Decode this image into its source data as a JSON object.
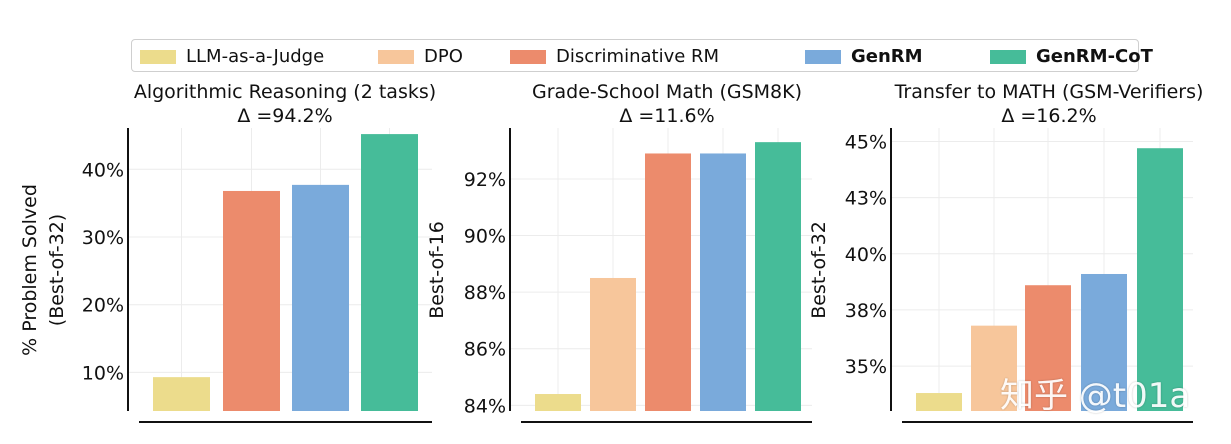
{
  "legend": [
    {
      "label": "LLM-as-a-Judge",
      "color": "#ecdc8c",
      "bold": false
    },
    {
      "label": "DPO",
      "color": "#f7c69b",
      "bold": false
    },
    {
      "label": "Discriminative RM",
      "color": "#ec8b6c",
      "bold": false
    },
    {
      "label": "GenRM",
      "color": "#7aaadb",
      "bold": true
    },
    {
      "label": "GenRM-CoT",
      "color": "#46bc99",
      "bold": true
    }
  ],
  "chart_data": [
    {
      "type": "bar",
      "title": "Algorithmic Reasoning (2 tasks)",
      "subtitle": "Δ =94.2%",
      "ylabel": [
        "% Problem Solved",
        "(Best-of-32)"
      ],
      "categories": [
        "LLM-as-a-Judge",
        "Discriminative RM",
        "GenRM",
        "GenRM-CoT"
      ],
      "colors": [
        "#ecdc8c",
        "#ec8b6c",
        "#7aaadb",
        "#46bc99"
      ],
      "values": [
        9.3,
        36.8,
        37.7,
        45.2
      ],
      "ylim": [
        4.3,
        46.1
      ],
      "yticks": [
        10,
        20,
        30,
        40
      ],
      "yticklabels": [
        "10%",
        "20%",
        "30%",
        "40%"
      ],
      "grid": true
    },
    {
      "type": "bar",
      "title": "Grade-School Math (GSM8K)",
      "subtitle": "Δ =11.6%",
      "ylabel": [
        "Best-of-16"
      ],
      "categories": [
        "LLM-as-a-Judge",
        "DPO",
        "Discriminative RM",
        "GenRM",
        "GenRM-CoT"
      ],
      "colors": [
        "#ecdc8c",
        "#f7c69b",
        "#ec8b6c",
        "#7aaadb",
        "#46bc99"
      ],
      "values": [
        84.4,
        88.5,
        92.9,
        92.9,
        93.3
      ],
      "ylim": [
        83.8,
        93.8
      ],
      "yticks": [
        84,
        86,
        88,
        90,
        92
      ],
      "yticklabels": [
        "84%",
        "86%",
        "88%",
        "90%",
        "92%"
      ],
      "grid": true
    },
    {
      "type": "bar",
      "title": "Transfer to MATH (GSM-Verifiers)",
      "subtitle": "Δ =16.2%",
      "ylabel": [
        "Best-of-32"
      ],
      "categories": [
        "LLM-as-a-Judge",
        "DPO",
        "Discriminative RM",
        "GenRM",
        "GenRM-CoT"
      ],
      "colors": [
        "#ecdc8c",
        "#f7c69b",
        "#ec8b6c",
        "#7aaadb",
        "#46bc99"
      ],
      "values": [
        33.8,
        36.8,
        38.6,
        39.1,
        44.7
      ],
      "ylim": [
        33.0,
        45.6
      ],
      "yticks": [
        35,
        37.5,
        40,
        42.5,
        45
      ],
      "yticklabels": [
        "35%",
        "38%",
        "40%",
        "43%",
        "45%"
      ],
      "grid": true
    }
  ],
  "watermark": "知乎 @t01a"
}
